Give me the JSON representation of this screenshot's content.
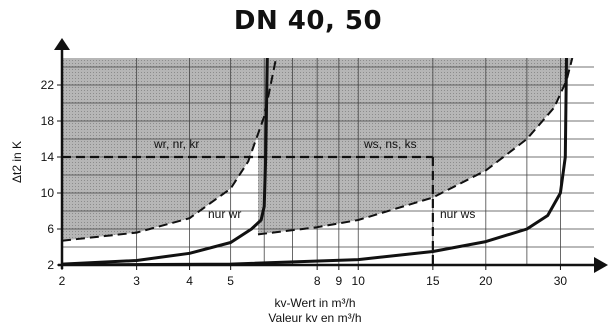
{
  "chart_data": {
    "type": "line",
    "title": "DN 40, 50",
    "xlabel": "kv-Wert in m³/h",
    "xlabel_fr": "Valeur kv en m³/h",
    "ylabel": "Δt2 in K",
    "x_scale": "log",
    "xlim": [
      2,
      36
    ],
    "ylim": [
      2,
      25
    ],
    "x_ticks": [
      2,
      3,
      4,
      5,
      8,
      9,
      10,
      15,
      20,
      30
    ],
    "x_tick_labels": [
      "2",
      "3",
      "4",
      "5",
      "8",
      "9",
      "10",
      "15",
      "20",
      "30"
    ],
    "y_ticks": [
      2,
      6,
      10,
      14,
      18,
      22
    ],
    "y_tick_labels": [
      "2",
      "6",
      "10",
      "14",
      "18",
      "22"
    ],
    "grid": true,
    "region_labels": [
      "wr, nr, kr",
      "ws, ns, ks",
      "nur wr",
      "nur ws"
    ],
    "reference_line": {
      "y": 14,
      "x_end": 15
    },
    "series": [
      {
        "style": "dashed",
        "x": [
          2.0,
          3.0,
          4.0,
          5.0,
          5.5,
          6.0,
          6.4
        ],
        "y": [
          4.7,
          5.6,
          7.2,
          10.5,
          13.5,
          18.5,
          25.0
        ]
      },
      {
        "style": "solid",
        "x": [
          2.0,
          3.0,
          4.0,
          5.0,
          5.6,
          5.9,
          6.0,
          6.05,
          6.1
        ],
        "y": [
          2.1,
          2.5,
          3.3,
          4.5,
          6.0,
          7.0,
          8.5,
          14.0,
          25.0
        ]
      },
      {
        "style": "dashed",
        "x": [
          5.8,
          8.0,
          10.0,
          15.0,
          20.0,
          25.0,
          29.0,
          31.0,
          32.0
        ],
        "y": [
          5.4,
          6.2,
          7.0,
          9.5,
          12.5,
          16.0,
          19.5,
          22.5,
          25.0
        ]
      },
      {
        "style": "solid",
        "x": [
          2.0,
          5.0,
          10.0,
          15.0,
          20.0,
          25.0,
          28.0,
          30.0,
          30.8,
          31.0
        ],
        "y": [
          2.0,
          2.1,
          2.6,
          3.5,
          4.6,
          6.0,
          7.5,
          10.0,
          14.0,
          25.0
        ]
      }
    ]
  },
  "colors": {
    "shade": "#b6b6b6",
    "ink": "#111111"
  }
}
